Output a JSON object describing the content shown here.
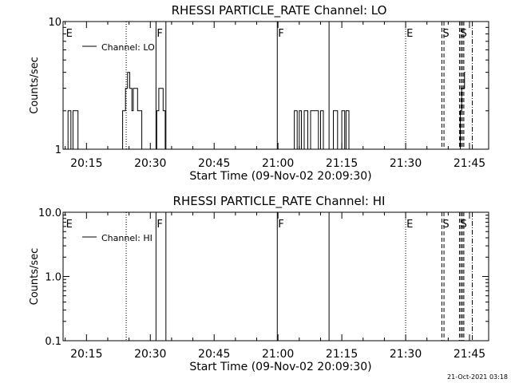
{
  "footer": {
    "stamp": "21-Oct-2021 03:18"
  },
  "chart_data": [
    {
      "type": "line",
      "title": "RHESSI PARTICLE_RATE Channel: LO",
      "xlabel": "Start Time (09-Nov-02 20:09:30)",
      "ylabel": "Counts/sec",
      "xscale": "time",
      "yscale": "log",
      "xlim": [
        "20:09:30",
        "21:49:30"
      ],
      "ylim": [
        1,
        10
      ],
      "ytick_labels": [
        "1",
        "10"
      ],
      "xtick_labels": [
        "20:15",
        "20:30",
        "20:45",
        "21:00",
        "21:15",
        "21:30",
        "21:45"
      ],
      "grid": false,
      "legend": "top-left",
      "series": [
        {
          "name": "Channel: LO",
          "points": [
            [
              "20:09:30",
              1
            ],
            [
              "20:10:40",
              1
            ],
            [
              "20:10:40",
              2
            ],
            [
              "20:11:20",
              2
            ],
            [
              "20:11:20",
              1
            ],
            [
              "20:11:50",
              1
            ],
            [
              "20:11:50",
              2
            ],
            [
              "20:13:00",
              2
            ],
            [
              "20:13:00",
              1
            ],
            [
              "20:23:30",
              1
            ],
            [
              "20:23:30",
              2
            ],
            [
              "20:24:10",
              2
            ],
            [
              "20:24:10",
              3
            ],
            [
              "20:24:40",
              3
            ],
            [
              "20:24:40",
              4
            ],
            [
              "20:25:10",
              4
            ],
            [
              "20:25:10",
              3
            ],
            [
              "20:25:40",
              3
            ],
            [
              "20:25:40",
              2
            ],
            [
              "20:26:00",
              2
            ],
            [
              "20:26:00",
              3
            ],
            [
              "20:27:00",
              3
            ],
            [
              "20:27:00",
              2
            ],
            [
              "20:28:00",
              2
            ],
            [
              "20:28:00",
              1
            ],
            [
              "20:31:30",
              1
            ],
            [
              "20:31:30",
              2
            ],
            [
              "20:32:00",
              2
            ],
            [
              "20:32:00",
              3
            ],
            [
              "20:33:00",
              3
            ],
            [
              "20:33:00",
              2
            ],
            [
              "20:33:30",
              2
            ],
            [
              "20:33:30",
              1
            ],
            [
              "21:03:50",
              1
            ],
            [
              "21:03:50",
              2
            ],
            [
              "21:04:30",
              2
            ],
            [
              "21:04:30",
              1
            ],
            [
              "21:05:00",
              1
            ],
            [
              "21:05:00",
              2
            ],
            [
              "21:05:30",
              2
            ],
            [
              "21:05:30",
              1
            ],
            [
              "21:06:10",
              1
            ],
            [
              "21:06:10",
              2
            ],
            [
              "21:07:00",
              2
            ],
            [
              "21:07:00",
              1
            ],
            [
              "21:07:40",
              1
            ],
            [
              "21:07:40",
              2
            ],
            [
              "21:09:30",
              2
            ],
            [
              "21:09:30",
              1
            ],
            [
              "21:10:00",
              1
            ],
            [
              "21:10:00",
              2
            ],
            [
              "21:10:40",
              2
            ],
            [
              "21:10:40",
              1
            ],
            [
              "21:13:00",
              1
            ],
            [
              "21:13:00",
              2
            ],
            [
              "21:14:00",
              2
            ],
            [
              "21:14:00",
              1
            ],
            [
              "21:15:00",
              1
            ],
            [
              "21:15:00",
              2
            ],
            [
              "21:15:40",
              2
            ],
            [
              "21:15:40",
              1
            ],
            [
              "21:16:00",
              1
            ],
            [
              "21:16:00",
              2
            ],
            [
              "21:16:40",
              2
            ],
            [
              "21:16:40",
              1
            ],
            [
              "21:42:50",
              1
            ],
            [
              "21:42:50",
              2
            ],
            [
              "21:43:10",
              2
            ],
            [
              "21:43:10",
              3
            ],
            [
              "21:43:50",
              3
            ],
            [
              "21:43:50",
              4
            ],
            [
              "21:44:00",
              4
            ]
          ]
        }
      ],
      "markers": [
        {
          "time": "20:10:00",
          "style": "none",
          "label": "E"
        },
        {
          "time": "20:24:20",
          "style": "dotted",
          "label": ""
        },
        {
          "time": "20:31:20",
          "style": "solid",
          "label": "F"
        },
        {
          "time": "20:33:40",
          "style": "solid",
          "label": ""
        },
        {
          "time": "20:59:50",
          "style": "solid",
          "label": "F"
        },
        {
          "time": "21:12:00",
          "style": "solid",
          "label": ""
        },
        {
          "time": "21:30:00",
          "style": "dotted",
          "label": "E"
        },
        {
          "time": "21:38:30",
          "style": "dashed",
          "label": "S"
        },
        {
          "time": "21:39:00",
          "style": "dashed",
          "label": ""
        },
        {
          "time": "21:42:40",
          "style": "dashed",
          "label": "S"
        },
        {
          "time": "21:43:00",
          "style": "dashed",
          "label": ""
        },
        {
          "time": "21:43:20",
          "style": "dashed",
          "label": ""
        },
        {
          "time": "21:43:40",
          "style": "dashed",
          "label": ""
        },
        {
          "time": "21:45:40",
          "style": "dashdot",
          "label": ""
        }
      ]
    },
    {
      "type": "line",
      "title": "RHESSI PARTICLE_RATE Channel: HI",
      "xlabel": "Start Time (09-Nov-02 20:09:30)",
      "ylabel": "Counts/sec",
      "xscale": "time",
      "yscale": "log",
      "xlim": [
        "20:09:30",
        "21:49:30"
      ],
      "ylim": [
        0.1,
        10
      ],
      "ytick_labels": [
        "0.1",
        "1.0",
        "10.0"
      ],
      "xtick_labels": [
        "20:15",
        "20:30",
        "20:45",
        "21:00",
        "21:15",
        "21:30",
        "21:45"
      ],
      "grid": false,
      "legend": "top-left",
      "series": [
        {
          "name": "Channel: HI",
          "points": []
        }
      ],
      "markers": [
        {
          "time": "20:10:00",
          "style": "none",
          "label": "E"
        },
        {
          "time": "20:24:20",
          "style": "dotted",
          "label": ""
        },
        {
          "time": "20:31:20",
          "style": "solid",
          "label": "F"
        },
        {
          "time": "20:33:40",
          "style": "solid",
          "label": ""
        },
        {
          "time": "20:59:50",
          "style": "solid",
          "label": "F"
        },
        {
          "time": "21:12:00",
          "style": "solid",
          "label": ""
        },
        {
          "time": "21:30:00",
          "style": "dotted",
          "label": "E"
        },
        {
          "time": "21:38:30",
          "style": "dashed",
          "label": "S"
        },
        {
          "time": "21:39:00",
          "style": "dashed",
          "label": ""
        },
        {
          "time": "21:42:40",
          "style": "dashed",
          "label": "S"
        },
        {
          "time": "21:43:00",
          "style": "dashed",
          "label": ""
        },
        {
          "time": "21:43:20",
          "style": "dashed",
          "label": ""
        },
        {
          "time": "21:43:40",
          "style": "dashed",
          "label": ""
        },
        {
          "time": "21:45:40",
          "style": "dashdot",
          "label": ""
        }
      ]
    }
  ]
}
